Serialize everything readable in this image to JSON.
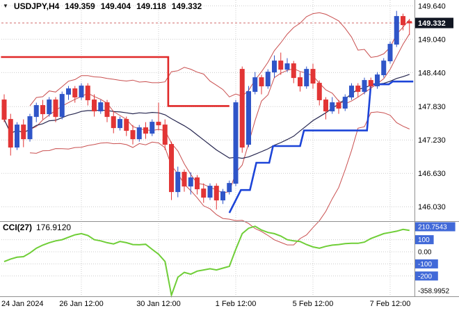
{
  "header": {
    "symbol": "USDJPY,H4",
    "open": "149.359",
    "high": "149.404",
    "low": "149.118",
    "close": "149.332"
  },
  "indicator_header": {
    "label": "CCI(27)",
    "value": "176.9120"
  },
  "colors": {
    "bull": "#2f55c8",
    "bear": "#e23535",
    "ma_slow": "#26264f",
    "ma_fast": "#c94f4f",
    "band": "#c94f4f",
    "resistance": "#e02828",
    "support": "#1c44d8",
    "cci_line": "#6fce37",
    "level_box": "#4169d8",
    "price_box": "#121723",
    "grid": "#cccccc",
    "separator": "#909090",
    "axis_text": "#000000",
    "bid_line": "#d06a6a"
  },
  "price_axis": {
    "labels": [
      "149.640",
      "149.040",
      "148.440",
      "147.830",
      "147.230",
      "146.630",
      "146.030"
    ],
    "current": "149.332"
  },
  "chart_data": {
    "type": "candlestick",
    "symbol": "USDJPY",
    "timeframe": "H4",
    "title": "USDJPY,H4 with bands, trend step lines and CCI(27)",
    "ylim": [
      145.77,
      149.745
    ],
    "grid": true,
    "time_labels": [
      {
        "text": "24 Jan 2024",
        "index": 0,
        "align": "left"
      },
      {
        "text": "26 Jan 12:00",
        "index": 12,
        "align": "center"
      },
      {
        "text": "30 Jan 12:00",
        "index": 24,
        "align": "center"
      },
      {
        "text": "1 Feb 12:00",
        "index": 36,
        "align": "center"
      },
      {
        "text": "5 Feb 12:00",
        "index": 48,
        "align": "center"
      },
      {
        "text": "7 Feb 12:00",
        "index": 60,
        "align": "center"
      }
    ],
    "candles": [
      [
        147.95,
        148.05,
        147.55,
        147.6
      ],
      [
        147.6,
        147.7,
        146.95,
        147.1
      ],
      [
        147.1,
        147.55,
        147.05,
        147.5
      ],
      [
        147.5,
        147.6,
        147.1,
        147.25
      ],
      [
        147.25,
        147.7,
        147.2,
        147.65
      ],
      [
        147.65,
        147.9,
        147.55,
        147.85
      ],
      [
        147.85,
        147.95,
        147.6,
        147.7
      ],
      [
        147.7,
        148.0,
        147.65,
        147.95
      ],
      [
        147.95,
        148.0,
        147.55,
        147.65
      ],
      [
        147.65,
        148.1,
        147.6,
        148.05
      ],
      [
        148.05,
        148.2,
        147.95,
        148.15
      ],
      [
        148.15,
        148.2,
        147.9,
        148.0
      ],
      [
        148.0,
        148.25,
        147.95,
        148.2
      ],
      [
        148.2,
        148.25,
        147.85,
        147.95
      ],
      [
        147.95,
        148.05,
        147.65,
        147.75
      ],
      [
        147.75,
        147.95,
        147.7,
        147.9
      ],
      [
        147.9,
        147.95,
        147.55,
        147.65
      ],
      [
        147.65,
        147.75,
        147.35,
        147.45
      ],
      [
        147.45,
        147.65,
        147.4,
        147.6
      ],
      [
        147.6,
        147.65,
        147.3,
        147.4
      ],
      [
        147.4,
        147.5,
        147.15,
        147.25
      ],
      [
        147.25,
        147.5,
        147.2,
        147.45
      ],
      [
        147.45,
        147.55,
        147.25,
        147.35
      ],
      [
        147.35,
        147.6,
        147.3,
        147.55
      ],
      [
        147.55,
        147.9,
        147.4,
        147.5
      ],
      [
        147.5,
        147.6,
        147.05,
        147.15
      ],
      [
        147.15,
        147.2,
        146.15,
        146.3
      ],
      [
        146.3,
        146.75,
        146.2,
        146.65
      ],
      [
        146.65,
        146.7,
        146.3,
        146.4
      ],
      [
        146.4,
        146.65,
        146.25,
        146.55
      ],
      [
        146.55,
        146.6,
        146.25,
        146.35
      ],
      [
        146.35,
        146.45,
        146.1,
        146.2
      ],
      [
        146.2,
        146.45,
        146.15,
        146.4
      ],
      [
        146.4,
        146.45,
        145.98,
        146.15
      ],
      [
        146.15,
        146.35,
        146.08,
        146.3
      ],
      [
        146.3,
        146.5,
        146.25,
        146.45
      ],
      [
        146.45,
        147.95,
        146.4,
        147.9
      ],
      [
        148.5,
        148.55,
        147.0,
        147.1
      ],
      [
        147.15,
        148.2,
        147.1,
        148.1
      ],
      [
        148.1,
        148.45,
        148.05,
        148.35
      ],
      [
        148.35,
        148.4,
        148.05,
        148.2
      ],
      [
        148.2,
        148.5,
        148.15,
        148.45
      ],
      [
        148.45,
        148.75,
        148.35,
        148.65
      ],
      [
        148.65,
        148.8,
        148.4,
        148.5
      ],
      [
        148.5,
        148.7,
        148.45,
        148.6
      ],
      [
        148.6,
        148.65,
        148.25,
        148.35
      ],
      [
        148.35,
        148.45,
        148.1,
        148.2
      ],
      [
        148.2,
        148.55,
        148.15,
        148.5
      ],
      [
        148.5,
        148.6,
        148.15,
        148.25
      ],
      [
        148.25,
        148.3,
        147.85,
        147.95
      ],
      [
        147.95,
        148.0,
        147.6,
        147.75
      ],
      [
        147.75,
        148.0,
        147.7,
        147.9
      ],
      [
        147.9,
        147.95,
        147.7,
        147.8
      ],
      [
        147.8,
        148.05,
        147.75,
        148.0
      ],
      [
        148.0,
        148.25,
        147.95,
        148.2
      ],
      [
        148.2,
        148.25,
        148.0,
        148.1
      ],
      [
        148.1,
        148.35,
        148.05,
        148.3
      ],
      [
        148.3,
        148.35,
        148.15,
        148.2
      ],
      [
        148.2,
        148.45,
        148.15,
        148.4
      ],
      [
        148.4,
        148.7,
        148.35,
        148.65
      ],
      [
        148.65,
        149.0,
        148.6,
        148.95
      ],
      [
        148.95,
        149.55,
        148.9,
        149.45
      ],
      [
        149.45,
        149.5,
        149.2,
        149.3
      ],
      [
        149.359,
        149.404,
        149.118,
        149.332
      ]
    ],
    "ma": {
      "fast_period": 5,
      "slow_period": 20,
      "band_mult": 2
    },
    "trend_steps": {
      "resistance": {
        "points": [
          [
            -0.5,
            148.72
          ],
          [
            25.5,
            148.72
          ],
          [
            25.5,
            147.84
          ],
          [
            35.0,
            147.84
          ]
        ]
      },
      "support": {
        "points": [
          [
            35.0,
            145.92
          ],
          [
            36.8,
            146.33
          ],
          [
            38.2,
            146.33
          ],
          [
            39.2,
            146.82
          ],
          [
            41.2,
            146.82
          ],
          [
            41.8,
            147.12
          ],
          [
            46.0,
            147.12
          ],
          [
            46.6,
            147.4
          ],
          [
            56.4,
            147.4
          ],
          [
            57.0,
            148.23
          ],
          [
            59.8,
            148.23
          ],
          [
            60.4,
            148.28
          ],
          [
            63.6,
            148.28
          ]
        ]
      }
    },
    "cci": {
      "period": 27,
      "current": 176.912,
      "max": 210.7543,
      "min": -358.9952,
      "values": [
        -81,
        -60,
        -45,
        -40,
        -10,
        30,
        55,
        75,
        90,
        100,
        120,
        140,
        150,
        135,
        100,
        90,
        75,
        65,
        85,
        75,
        60,
        58,
        62,
        20,
        -20,
        -80,
        -359,
        -210,
        -170,
        -185,
        -160,
        -150,
        -140,
        -150,
        -135,
        -120,
        20,
        150,
        195,
        210.75,
        180,
        160,
        150,
        130,
        100,
        90,
        85,
        60,
        40,
        30,
        45,
        55,
        60,
        68,
        70,
        70,
        80,
        110,
        130,
        150,
        160,
        170,
        185,
        176.91
      ],
      "axis": [
        {
          "label": "210.7543",
          "value": 210.7543,
          "boxed": true,
          "line": false
        },
        {
          "label": "100",
          "value": 100,
          "boxed": true,
          "line": true
        },
        {
          "label": "0.00",
          "value": 0,
          "boxed": false,
          "line": true
        },
        {
          "label": "-100",
          "value": -100,
          "boxed": true,
          "line": true
        },
        {
          "label": "-200",
          "value": -200,
          "boxed": true,
          "line": true
        },
        {
          "label": "-358.9952",
          "value": -358.9952,
          "boxed": false,
          "line": false
        }
      ]
    }
  }
}
